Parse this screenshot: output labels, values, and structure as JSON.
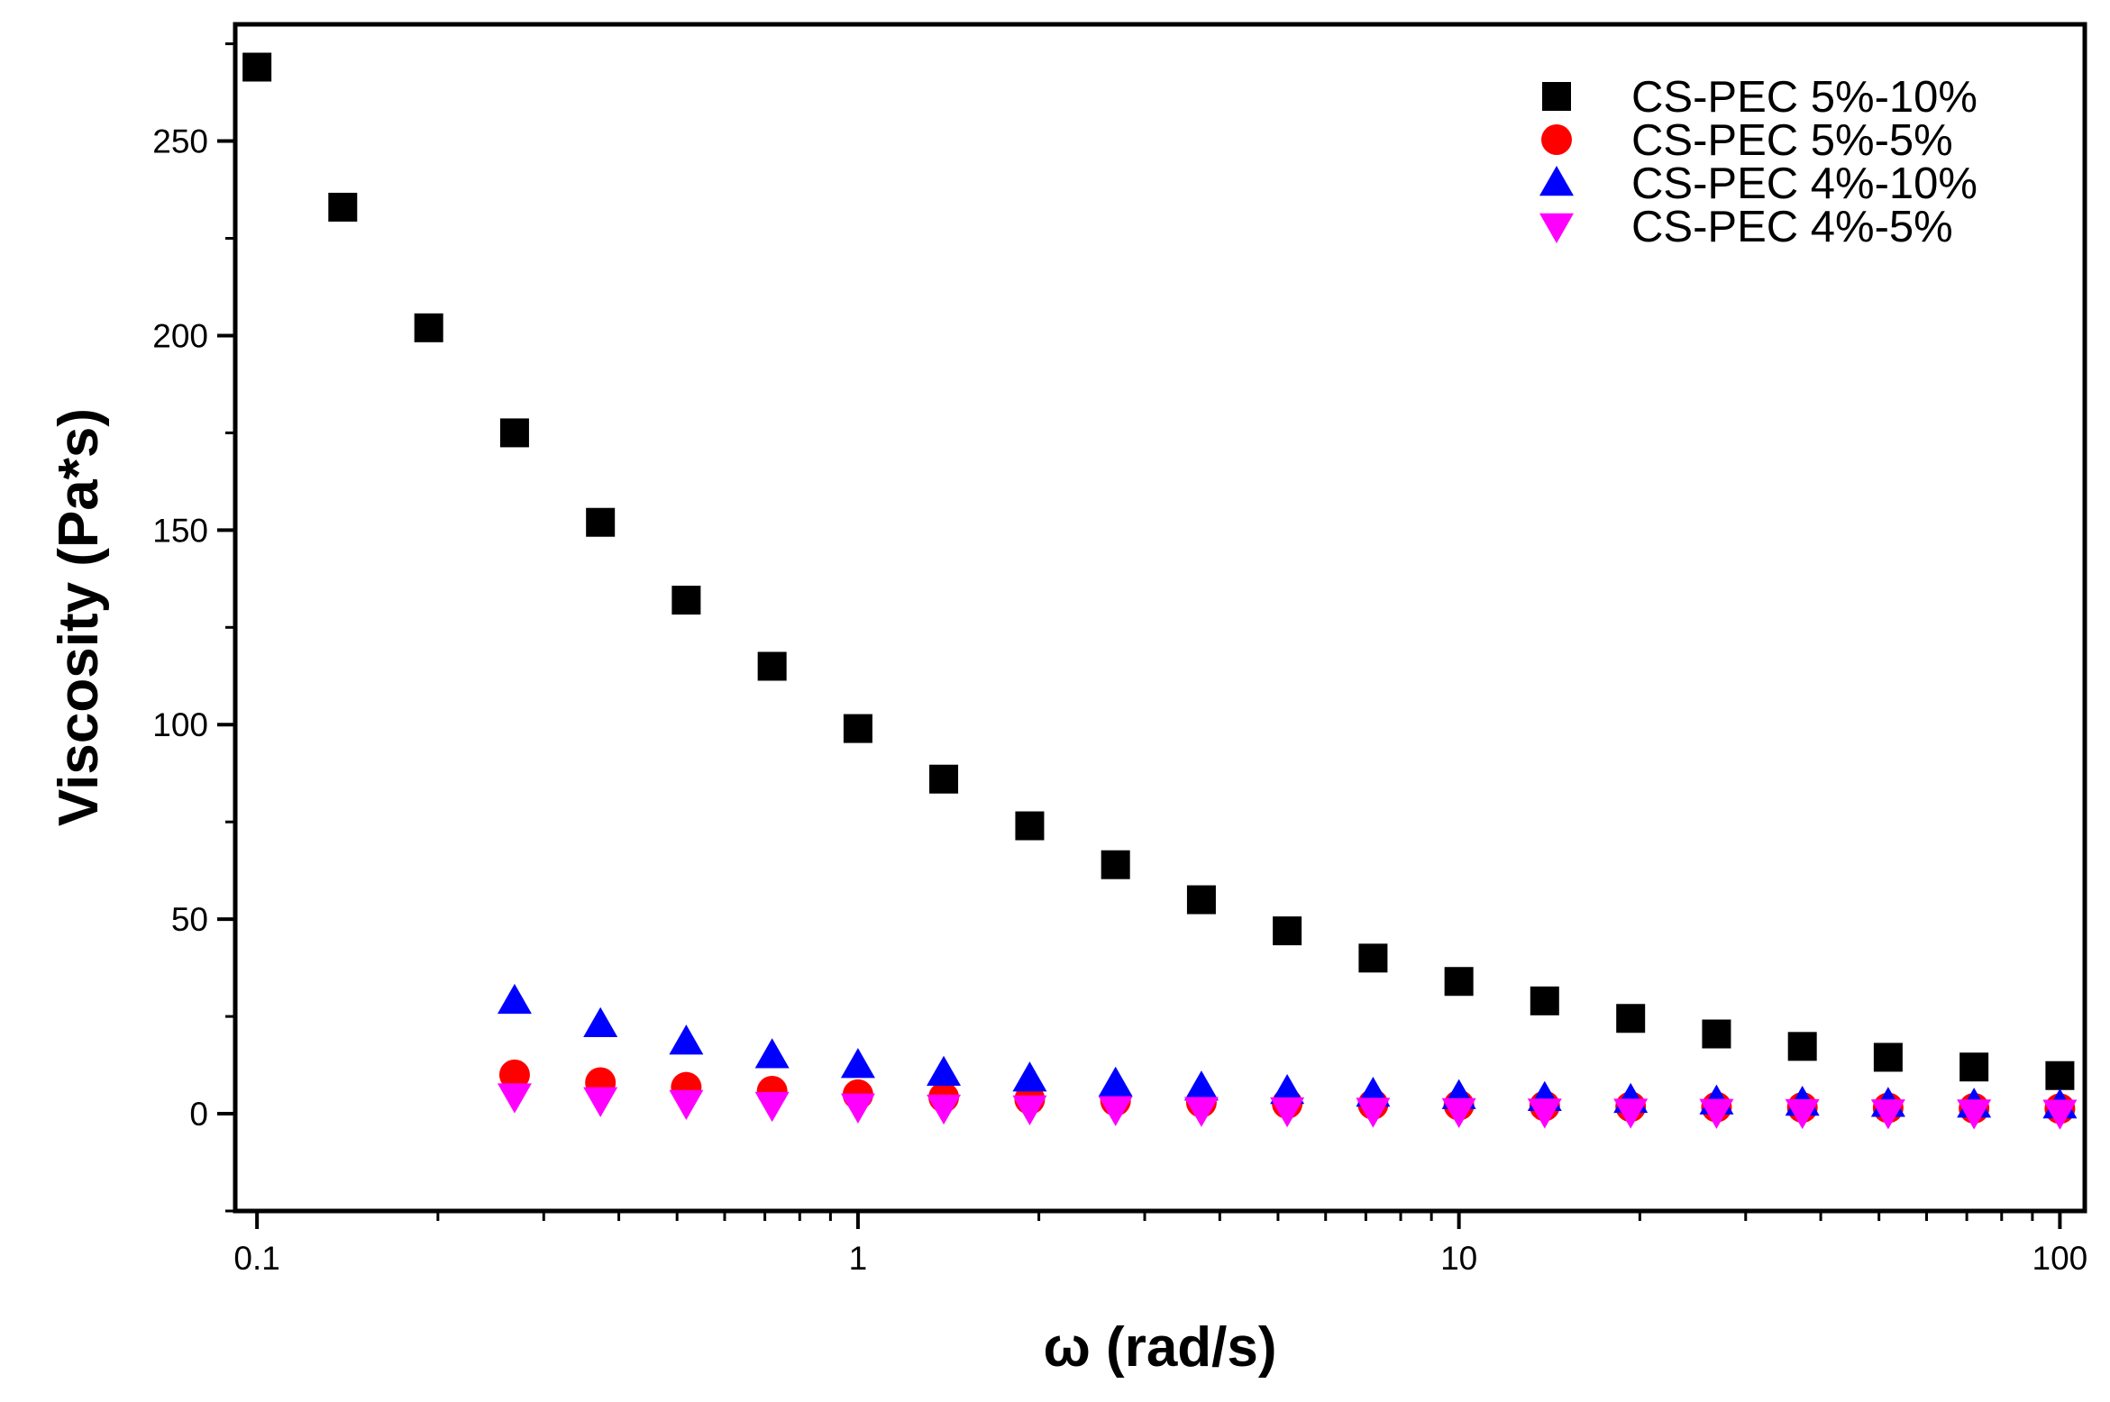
{
  "chart_data": {
    "type": "scatter",
    "title": "",
    "xlabel": "ω (rad/s)",
    "ylabel": "Viscosity (Pa*s)",
    "xscale": "log",
    "xlim": [
      0.092,
      110
    ],
    "ylim": [
      -25,
      280
    ],
    "grid": false,
    "legend_position": "top-right",
    "x_ticks": [
      {
        "value": 0.1,
        "label": "0.1"
      },
      {
        "value": 1,
        "label": "1"
      },
      {
        "value": 10,
        "label": "10"
      },
      {
        "value": 100,
        "label": "100"
      }
    ],
    "y_ticks": [
      {
        "value": 0,
        "label": "0"
      },
      {
        "value": 50,
        "label": "50"
      },
      {
        "value": 100,
        "label": "100"
      },
      {
        "value": 150,
        "label": "150"
      },
      {
        "value": 200,
        "label": "200"
      },
      {
        "value": 250,
        "label": "250"
      }
    ],
    "series": [
      {
        "name": "CS-PEC 5%-10%",
        "marker": "square",
        "color": "#000000",
        "x": [
          0.1,
          0.1389,
          0.1931,
          0.2683,
          0.3728,
          0.5179,
          0.7197,
          1,
          1.389,
          1.931,
          2.683,
          3.728,
          5.179,
          7.197,
          10,
          13.89,
          19.31,
          26.83,
          37.28,
          51.79,
          71.97,
          100
        ],
        "y": [
          269,
          233,
          202,
          175,
          152,
          132,
          115,
          99,
          86,
          74,
          64,
          55,
          47,
          40,
          34,
          29,
          24.5,
          20.5,
          17.3,
          14.5,
          12,
          9.8
        ]
      },
      {
        "name": "CS-PEC 5%-5%",
        "marker": "circle",
        "color": "#ff0000",
        "x": [
          0.2683,
          0.3728,
          0.5179,
          0.7197,
          1,
          1.389,
          1.931,
          2.683,
          3.728,
          5.179,
          7.197,
          10,
          13.89,
          19.31,
          26.83,
          37.28,
          51.79,
          71.97,
          100
        ],
        "y": [
          10,
          8,
          6.8,
          5.8,
          4.9,
          4.2,
          3.7,
          3.3,
          2.9,
          2.6,
          2.4,
          2.2,
          2.0,
          1.8,
          1.7,
          1.6,
          1.5,
          1.4,
          1.3
        ]
      },
      {
        "name": "CS-PEC 4%-10%",
        "marker": "triangle-up",
        "color": "#0000ff",
        "x": [
          0.2683,
          0.3728,
          0.5179,
          0.7197,
          1,
          1.389,
          1.931,
          2.683,
          3.728,
          5.179,
          7.197,
          10,
          13.89,
          19.31,
          26.83,
          37.28,
          51.79,
          71.97,
          100
        ],
        "y": [
          29,
          23,
          18.5,
          15,
          12.5,
          10.5,
          9,
          7.7,
          6.7,
          5.8,
          5.1,
          4.5,
          4.0,
          3.5,
          3.1,
          2.8,
          2.5,
          2.3,
          2.1
        ]
      },
      {
        "name": "CS-PEC 4%-5%",
        "marker": "triangle-down",
        "color": "#ff00ff",
        "x": [
          0.2683,
          0.3728,
          0.5179,
          0.7197,
          1,
          1.389,
          1.931,
          2.683,
          3.728,
          5.179,
          7.197,
          10,
          13.89,
          19.31,
          26.83,
          37.28,
          51.79,
          71.97,
          100
        ],
        "y": [
          4.5,
          3.5,
          2.8,
          2.3,
          1.9,
          1.6,
          1.4,
          1.2,
          1.0,
          0.9,
          0.8,
          0.7,
          0.6,
          0.55,
          0.5,
          0.45,
          0.4,
          0.35,
          0.3
        ]
      }
    ]
  }
}
